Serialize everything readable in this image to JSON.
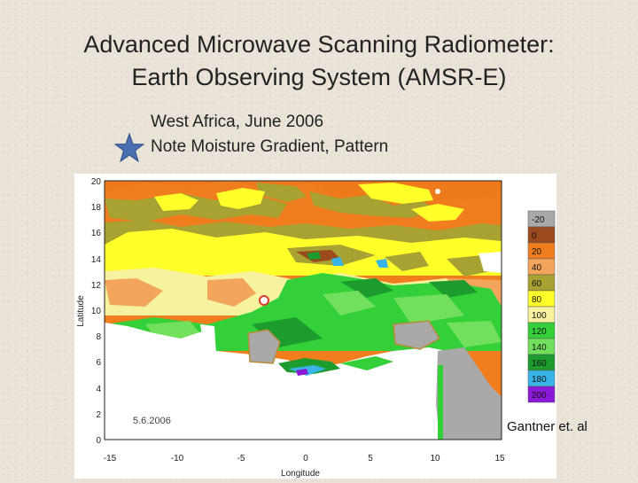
{
  "slide": {
    "title_line1": "Advanced Microwave Scanning Radiometer:",
    "title_line2": "Earth Observing System (AMSR-E)",
    "subtitle_line1": "West Africa, June 2006",
    "subtitle_line2": "Note Moisture Gradient, Pattern",
    "credit": "Gantner et. al"
  },
  "map": {
    "date_label": "5.6.2006",
    "x_axis_label": "Longitude",
    "y_axis_label": "Latitude",
    "x_ticks": [
      "-15",
      "-10",
      "-5",
      "0",
      "5",
      "10",
      "15"
    ],
    "y_ticks": [
      "20",
      "18",
      "16",
      "14",
      "12",
      "10",
      "8",
      "6",
      "4",
      "2",
      "0"
    ],
    "legend": [
      {
        "label": "-20",
        "color": "#a9a9a9"
      },
      {
        "label": "0",
        "color": "#9b4a1e"
      },
      {
        "label": "20",
        "color": "#f07e1e"
      },
      {
        "label": "40",
        "color": "#f3a65b"
      },
      {
        "label": "60",
        "color": "#a7a232"
      },
      {
        "label": "80",
        "color": "#ffff2a"
      },
      {
        "label": "100",
        "color": "#f6f2a0"
      },
      {
        "label": "120",
        "color": "#33d03a"
      },
      {
        "label": "140",
        "color": "#72e05c"
      },
      {
        "label": "160",
        "color": "#1d9b2e"
      },
      {
        "label": "180",
        "color": "#39b4e8"
      },
      {
        "label": "200",
        "color": "#8a1ad8"
      }
    ]
  },
  "icons": {
    "bullet": "star-icon"
  }
}
